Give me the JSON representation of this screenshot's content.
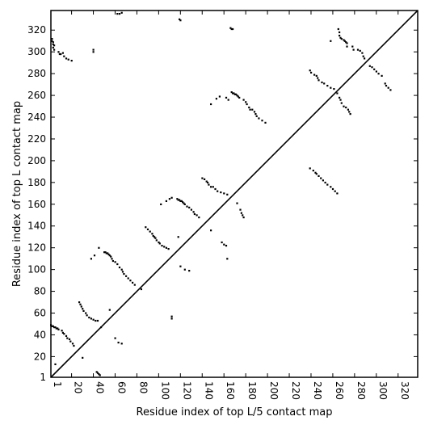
{
  "chart_data": {
    "type": "scatter",
    "title": "",
    "xlabel": "Residue index of top L/5 contact map",
    "ylabel": "Residue index of top L contact map",
    "xlim": [
      1,
      338
    ],
    "ylim": [
      1,
      338
    ],
    "x_ticks": [
      1,
      20,
      40,
      60,
      80,
      100,
      120,
      140,
      160,
      180,
      200,
      220,
      240,
      260,
      280,
      300,
      320
    ],
    "y_ticks": [
      1,
      20,
      40,
      60,
      80,
      100,
      120,
      140,
      160,
      180,
      200,
      220,
      240,
      260,
      280,
      300,
      320
    ],
    "x_tick_rotation": -90,
    "grid": false,
    "diagonal": {
      "from": [
        1,
        1
      ],
      "to": [
        338,
        338
      ]
    },
    "series": [
      {
        "marker": "square",
        "color": "#000000",
        "points": [
          [
            2,
            312
          ],
          [
            2,
            310
          ],
          [
            3,
            309
          ],
          [
            3,
            307
          ],
          [
            4,
            306
          ],
          [
            3,
            304
          ],
          [
            4,
            302
          ],
          [
            8,
            300
          ],
          [
            9,
            298
          ],
          [
            10,
            298
          ],
          [
            12,
            299
          ],
          [
            13,
            296
          ],
          [
            15,
            294
          ],
          [
            17,
            293
          ],
          [
            20,
            292
          ],
          [
            40,
            302
          ],
          [
            40,
            300
          ],
          [
            62,
            335
          ],
          [
            64,
            335
          ],
          [
            66,
            336
          ],
          [
            119,
            330
          ],
          [
            120,
            329
          ],
          [
            166,
            322
          ],
          [
            167,
            321
          ],
          [
            168,
            321
          ],
          [
            265,
            321
          ],
          [
            266,
            318
          ],
          [
            266,
            315
          ],
          [
            267,
            313
          ],
          [
            268,
            312
          ],
          [
            270,
            311
          ],
          [
            271,
            310
          ],
          [
            272,
            309
          ],
          [
            273,
            308
          ],
          [
            258,
            310
          ],
          [
            273,
            305
          ],
          [
            278,
            305
          ],
          [
            279,
            302
          ],
          [
            283,
            302
          ],
          [
            285,
            301
          ],
          [
            287,
            299
          ],
          [
            288,
            296
          ],
          [
            289,
            294
          ],
          [
            294,
            287
          ],
          [
            296,
            286
          ],
          [
            298,
            284
          ],
          [
            300,
            282
          ],
          [
            302,
            280
          ],
          [
            305,
            278
          ],
          [
            239,
            283
          ],
          [
            240,
            281
          ],
          [
            243,
            279
          ],
          [
            245,
            278
          ],
          [
            246,
            276
          ],
          [
            247,
            274
          ],
          [
            250,
            272
          ],
          [
            252,
            271
          ],
          [
            255,
            269
          ],
          [
            258,
            267
          ],
          [
            261,
            266
          ],
          [
            264,
            262
          ],
          [
            266,
            258
          ],
          [
            267,
            256
          ],
          [
            268,
            253
          ],
          [
            270,
            250
          ],
          [
            272,
            249
          ],
          [
            274,
            247
          ],
          [
            275,
            245
          ],
          [
            276,
            243
          ],
          [
            308,
            271
          ],
          [
            309,
            269
          ],
          [
            311,
            267
          ],
          [
            313,
            265
          ],
          [
            162,
            258
          ],
          [
            164,
            256
          ],
          [
            167,
            263
          ],
          [
            168,
            262
          ],
          [
            169,
            262
          ],
          [
            170,
            261
          ],
          [
            171,
            261
          ],
          [
            172,
            260
          ],
          [
            173,
            259
          ],
          [
            174,
            258
          ],
          [
            178,
            256
          ],
          [
            180,
            254
          ],
          [
            181,
            252
          ],
          [
            183,
            249
          ],
          [
            184,
            247
          ],
          [
            186,
            247
          ],
          [
            188,
            245
          ],
          [
            189,
            243
          ],
          [
            190,
            241
          ],
          [
            192,
            239
          ],
          [
            195,
            237
          ],
          [
            198,
            235
          ],
          [
            148,
            252
          ],
          [
            153,
            257
          ],
          [
            156,
            259
          ],
          [
            239,
            193
          ],
          [
            242,
            191
          ],
          [
            244,
            189
          ],
          [
            245,
            188
          ],
          [
            247,
            186
          ],
          [
            249,
            184
          ],
          [
            251,
            182
          ],
          [
            253,
            180
          ],
          [
            255,
            178
          ],
          [
            258,
            176
          ],
          [
            260,
            174
          ],
          [
            262,
            172
          ],
          [
            264,
            170
          ],
          [
            140,
            184
          ],
          [
            142,
            183
          ],
          [
            144,
            181
          ],
          [
            145,
            180
          ],
          [
            146,
            178
          ],
          [
            148,
            176
          ],
          [
            150,
            176
          ],
          [
            152,
            174
          ],
          [
            154,
            172
          ],
          [
            157,
            171
          ],
          [
            160,
            170
          ],
          [
            163,
            169
          ],
          [
            172,
            161
          ],
          [
            175,
            155
          ],
          [
            176,
            152
          ],
          [
            177,
            150
          ],
          [
            178,
            148
          ],
          [
            102,
            160
          ],
          [
            107,
            163
          ],
          [
            110,
            165
          ],
          [
            112,
            166
          ],
          [
            117,
            165
          ],
          [
            118,
            164
          ],
          [
            119,
            164
          ],
          [
            120,
            163
          ],
          [
            121,
            163
          ],
          [
            122,
            162
          ],
          [
            123,
            161
          ],
          [
            124,
            160
          ],
          [
            126,
            158
          ],
          [
            128,
            157
          ],
          [
            130,
            155
          ],
          [
            132,
            153
          ],
          [
            133,
            151
          ],
          [
            135,
            150
          ],
          [
            137,
            148
          ],
          [
            158,
            125
          ],
          [
            160,
            123
          ],
          [
            162,
            122
          ],
          [
            163,
            110
          ],
          [
            148,
            136
          ],
          [
            88,
            139
          ],
          [
            90,
            137
          ],
          [
            92,
            135
          ],
          [
            94,
            133
          ],
          [
            95,
            131
          ],
          [
            96,
            130
          ],
          [
            97,
            129
          ],
          [
            98,
            127
          ],
          [
            100,
            125
          ],
          [
            101,
            124
          ],
          [
            103,
            122
          ],
          [
            105,
            121
          ],
          [
            107,
            120
          ],
          [
            109,
            119
          ],
          [
            112,
            55
          ],
          [
            112,
            57
          ],
          [
            118,
            130
          ],
          [
            120,
            103
          ],
          [
            124,
            100
          ],
          [
            128,
            99
          ],
          [
            45,
            120
          ],
          [
            50,
            116
          ],
          [
            51,
            116
          ],
          [
            52,
            115
          ],
          [
            53,
            115
          ],
          [
            54,
            114
          ],
          [
            55,
            113
          ],
          [
            56,
            112
          ],
          [
            57,
            110
          ],
          [
            58,
            108
          ],
          [
            60,
            107
          ],
          [
            62,
            105
          ],
          [
            64,
            102
          ],
          [
            66,
            100
          ],
          [
            67,
            98
          ],
          [
            68,
            96
          ],
          [
            70,
            94
          ],
          [
            72,
            92
          ],
          [
            74,
            90
          ],
          [
            76,
            88
          ],
          [
            78,
            86
          ],
          [
            84,
            82
          ],
          [
            38,
            110
          ],
          [
            41,
            113
          ],
          [
            27,
            70
          ],
          [
            28,
            68
          ],
          [
            29,
            66
          ],
          [
            30,
            64
          ],
          [
            31,
            62
          ],
          [
            33,
            60
          ],
          [
            34,
            58
          ],
          [
            36,
            56
          ],
          [
            38,
            55
          ],
          [
            40,
            54
          ],
          [
            42,
            53
          ],
          [
            44,
            53
          ],
          [
            47,
            47
          ],
          [
            55,
            63
          ],
          [
            60,
            37
          ],
          [
            63,
            33
          ],
          [
            66,
            32
          ],
          [
            1,
            49
          ],
          [
            2,
            48
          ],
          [
            3,
            48
          ],
          [
            4,
            47
          ],
          [
            5,
            47
          ],
          [
            6,
            46
          ],
          [
            7,
            46
          ],
          [
            8,
            45
          ],
          [
            11,
            44
          ],
          [
            12,
            42
          ],
          [
            13,
            41
          ],
          [
            15,
            39
          ],
          [
            16,
            37
          ],
          [
            18,
            36
          ],
          [
            19,
            34
          ],
          [
            21,
            32
          ],
          [
            22,
            30
          ],
          [
            30,
            19
          ],
          [
            5,
            13
          ],
          [
            43,
            6
          ],
          [
            44,
            5
          ],
          [
            45,
            4
          ],
          [
            46,
            3
          ]
        ]
      }
    ]
  }
}
